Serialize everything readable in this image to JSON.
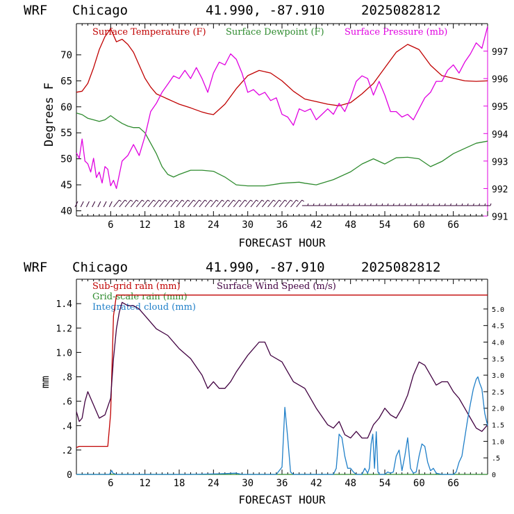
{
  "panels": [
    {
      "header": {
        "model": "WRF",
        "city": "Chicago",
        "coords": "41.990, -87.910",
        "run": "2025082812"
      },
      "chart_data": {
        "type": "line",
        "xlabel": "FORECAST HOUR",
        "ylabel": "Degrees F",
        "xlim": [
          0,
          72
        ],
        "x_ticks": [
          "6",
          "12",
          "18",
          "24",
          "30",
          "36",
          "42",
          "48",
          "54",
          "60",
          "66"
        ],
        "y_left": {
          "ylim": [
            39,
            76
          ],
          "ticks": [
            "40",
            "45",
            "50",
            "55",
            "60",
            "65",
            "70"
          ]
        },
        "y_right": {
          "ylim": [
            991,
            998
          ],
          "ticks": [
            "991",
            "992",
            "993",
            "994",
            "995",
            "996",
            "997"
          ]
        },
        "legend_position": "top",
        "colors": {
          "temperature": "#c00000",
          "dewpoint": "#2e8b2e",
          "pressure": "#e000e0",
          "wind_barbs": "#330033"
        },
        "series": [
          {
            "name": "Surface Temperature (F)",
            "axis": "left",
            "x": [
              0,
              1,
              2,
              3,
              4,
              5,
              6,
              7,
              8,
              9,
              10,
              11,
              12,
              13,
              14,
              15,
              16,
              17,
              18,
              20,
              22,
              23,
              24,
              26,
              28,
              30,
              32,
              34,
              36,
              38,
              40,
              42,
              44,
              46,
              48,
              50,
              52,
              54,
              56,
              58,
              60,
              62,
              64,
              66,
              68,
              70,
              72
            ],
            "y": [
              62.8,
              63,
              64.5,
              67.5,
              71,
              73.5,
              75,
              72.5,
              73,
              72,
              70.5,
              68,
              65.5,
              63.8,
              62.5,
              62,
              61.5,
              61,
              60.5,
              59.8,
              59,
              58.7,
              58.5,
              60.5,
              63.5,
              66,
              67,
              66.5,
              65,
              63,
              61.5,
              61,
              60.5,
              60.2,
              60.8,
              62.5,
              64.5,
              67.5,
              70.5,
              72,
              71,
              68,
              66,
              65.5,
              65,
              64.9,
              65
            ]
          },
          {
            "name": "Surface Dewpoint (F)",
            "axis": "left",
            "x": [
              0,
              1,
              2,
              3,
              4,
              5,
              6,
              7,
              8,
              9,
              10,
              11,
              12,
              13,
              14,
              15,
              16,
              17,
              18,
              20,
              22,
              24,
              26,
              28,
              30,
              33,
              36,
              39,
              40,
              42,
              45,
              48,
              50,
              52,
              54,
              56,
              58,
              60,
              62,
              64,
              66,
              68,
              70,
              72
            ],
            "y": [
              58.8,
              58.5,
              57.8,
              57.5,
              57.2,
              57.5,
              58.3,
              57.5,
              56.8,
              56.3,
              56,
              56,
              55,
              53,
              51,
              48.5,
              47,
              46.5,
              47,
              47.8,
              47.8,
              47.6,
              46.5,
              45,
              44.8,
              44.8,
              45.3,
              45.5,
              45.3,
              45,
              46,
              47.5,
              49,
              50,
              49,
              50.2,
              50.3,
              50,
              48.5,
              49.5,
              51,
              52,
              53,
              53.4
            ]
          },
          {
            "name": "Surface Pressure (mb)",
            "axis": "right",
            "x": [
              0,
              0.5,
              1,
              1.5,
              2,
              2.5,
              3,
              3.5,
              4,
              4.5,
              5,
              5.5,
              6,
              6.5,
              7,
              7.5,
              8,
              9,
              10,
              11,
              12,
              13,
              14,
              15,
              16,
              17,
              18,
              19,
              20,
              21,
              22,
              23,
              24,
              25,
              26,
              27,
              28,
              29,
              30,
              31,
              32,
              33,
              34,
              35,
              36,
              37,
              38,
              39,
              40,
              41,
              42,
              43,
              44,
              45,
              46,
              47,
              48,
              49,
              50,
              51,
              52,
              53,
              54,
              55,
              56,
              57,
              58,
              59,
              60,
              61,
              62,
              63,
              64,
              65,
              66,
              67,
              68,
              69,
              70,
              71,
              72
            ],
            "y": [
              993.3,
              993.1,
              993.8,
              993.0,
              992.9,
              992.6,
              993.1,
              992.4,
              992.6,
              992.2,
              992.8,
              992.7,
              992.1,
              992.3,
              992.0,
              992.5,
              993.0,
              993.2,
              993.6,
              993.2,
              993.9,
              994.8,
              995.1,
              995.5,
              995.8,
              996.1,
              996.0,
              996.3,
              996.0,
              996.4,
              996.0,
              995.5,
              996.2,
              996.6,
              996.5,
              996.9,
              996.7,
              996.2,
              995.5,
              995.6,
              995.4,
              995.5,
              995.2,
              995.3,
              994.7,
              994.6,
              994.3,
              994.9,
              994.8,
              994.9,
              994.5,
              994.7,
              994.9,
              994.7,
              995.1,
              994.8,
              995.3,
              995.9,
              996.1,
              996.0,
              995.4,
              995.9,
              995.4,
              994.8,
              994.8,
              994.6,
              994.7,
              994.5,
              994.9,
              995.3,
              995.5,
              995.9,
              995.9,
              996.3,
              996.5,
              996.2,
              996.6,
              996.9,
              997.3,
              997.1,
              997.9
            ]
          }
        ]
      }
    },
    {
      "header": {
        "model": "WRF",
        "city": "Chicago",
        "coords": "41.990, -87.910",
        "run": "2025082812"
      },
      "chart_data": {
        "type": "line",
        "xlabel": "FORECAST HOUR",
        "ylabel": "mm",
        "xlim": [
          0,
          72
        ],
        "x_ticks": [
          "6",
          "12",
          "18",
          "24",
          "30",
          "36",
          "42",
          "48",
          "54",
          "60",
          "66"
        ],
        "y_left": {
          "ylim": [
            0,
            1.6
          ],
          "ticks": [
            "0",
            ".2",
            ".4",
            ".6",
            ".8",
            "1.0",
            "1.2",
            "1.4"
          ]
        },
        "y_right": {
          "ylim": [
            0,
            5.9
          ],
          "ticks": [
            "0",
            ".5",
            "1.0",
            "1.5",
            "2.0",
            "2.5",
            "3.0",
            "3.5",
            "4.0",
            "4.5",
            "5.0"
          ]
        },
        "legend_position": "top-left",
        "colors": {
          "subgrid": "#c00000",
          "grid": "#2e8b2e",
          "cloud": "#1f7fc8",
          "wind": "#400040"
        },
        "series": [
          {
            "name": "Sub-grid rain (mm)",
            "axis": "left",
            "x": [
              0,
              0.5,
              5.5,
              6,
              6.5,
              7,
              72
            ],
            "y": [
              0.22,
              0.23,
              0.23,
              0.5,
              1.3,
              1.47,
              1.47
            ]
          },
          {
            "name": "Grid-scale rain (mm)",
            "axis": "left",
            "x": [
              0,
              72
            ],
            "y": [
              0,
              0
            ]
          },
          {
            "name": "Surface Wind Speed (m/s)",
            "axis": "right",
            "x": [
              0,
              0.5,
              1,
              1.5,
              2,
              3,
              4,
              5,
              6,
              6.5,
              7,
              7.5,
              8,
              9,
              10,
              11,
              12,
              14,
              16,
              18,
              20,
              22,
              23,
              24,
              25,
              26,
              27,
              28,
              30,
              32,
              33,
              34,
              36,
              37,
              38,
              40,
              42,
              44,
              45,
              46,
              47,
              48,
              49,
              50,
              51,
              52,
              53,
              54,
              55,
              56,
              57,
              58,
              59,
              60,
              61,
              62,
              63,
              64,
              65,
              66,
              67,
              68,
              69,
              70,
              71,
              72
            ],
            "y": [
              1.9,
              1.6,
              1.7,
              2.2,
              2.5,
              2.1,
              1.7,
              1.8,
              2.3,
              3.5,
              4.4,
              4.9,
              5.2,
              5.1,
              5.1,
              5.0,
              4.8,
              4.4,
              4.2,
              3.8,
              3.5,
              3.0,
              2.6,
              2.8,
              2.6,
              2.6,
              2.8,
              3.1,
              3.6,
              4.0,
              4.0,
              3.6,
              3.4,
              3.1,
              2.8,
              2.6,
              2.0,
              1.5,
              1.4,
              1.6,
              1.2,
              1.1,
              1.3,
              1.1,
              1.1,
              1.5,
              1.7,
              2.0,
              1.8,
              1.7,
              2.0,
              2.4,
              3.0,
              3.4,
              3.3,
              3.0,
              2.7,
              2.8,
              2.8,
              2.5,
              2.3,
              2.0,
              1.7,
              1.4,
              1.3,
              1.5
            ]
          },
          {
            "name": "Integrated cloud (mm)",
            "axis": "left",
            "x": [
              0,
              5.8,
              6,
              6.2,
              6.4,
              7,
              20,
              25,
              28,
              29,
              35,
              36,
              36.5,
              37,
              37.5,
              38,
              44,
              45,
              45.5,
              46,
              46.5,
              47,
              47.5,
              48,
              48.5,
              49,
              49.5,
              50,
              50.5,
              51,
              51.3,
              51.6,
              51.9,
              52.2,
              52.5,
              52.8,
              53.1,
              53.4,
              54,
              54.5,
              55,
              55.5,
              56,
              56.5,
              57,
              57.5,
              58,
              58.5,
              59,
              59.5,
              60,
              60.5,
              61,
              61.5,
              62,
              62.5,
              63,
              64,
              65,
              66,
              66.5,
              67,
              67.5,
              68,
              68.5,
              69,
              69.5,
              70,
              70.3,
              70.6,
              71,
              71.5,
              72
            ],
            "y": [
              0,
              0,
              0.02,
              0.03,
              0.01,
              0,
              0,
              0.005,
              0.01,
              0,
              0,
              0.06,
              0.55,
              0.3,
              0.02,
              0,
              0,
              0,
              0.05,
              0.33,
              0.3,
              0.15,
              0.05,
              0.05,
              0.02,
              0,
              0,
              0,
              0.05,
              0.01,
              0.05,
              0.25,
              0.33,
              0.05,
              0.35,
              0.02,
              0,
              0,
              0,
              0.02,
              0.01,
              0.02,
              0.15,
              0.2,
              0.03,
              0.15,
              0.3,
              0.05,
              0.01,
              0.02,
              0.15,
              0.25,
              0.23,
              0.1,
              0.03,
              0.05,
              0.01,
              0,
              0,
              0,
              0.02,
              0.1,
              0.15,
              0.3,
              0.45,
              0.58,
              0.7,
              0.78,
              0.8,
              0.75,
              0.7,
              0.5,
              0.4
            ]
          }
        ]
      }
    }
  ]
}
